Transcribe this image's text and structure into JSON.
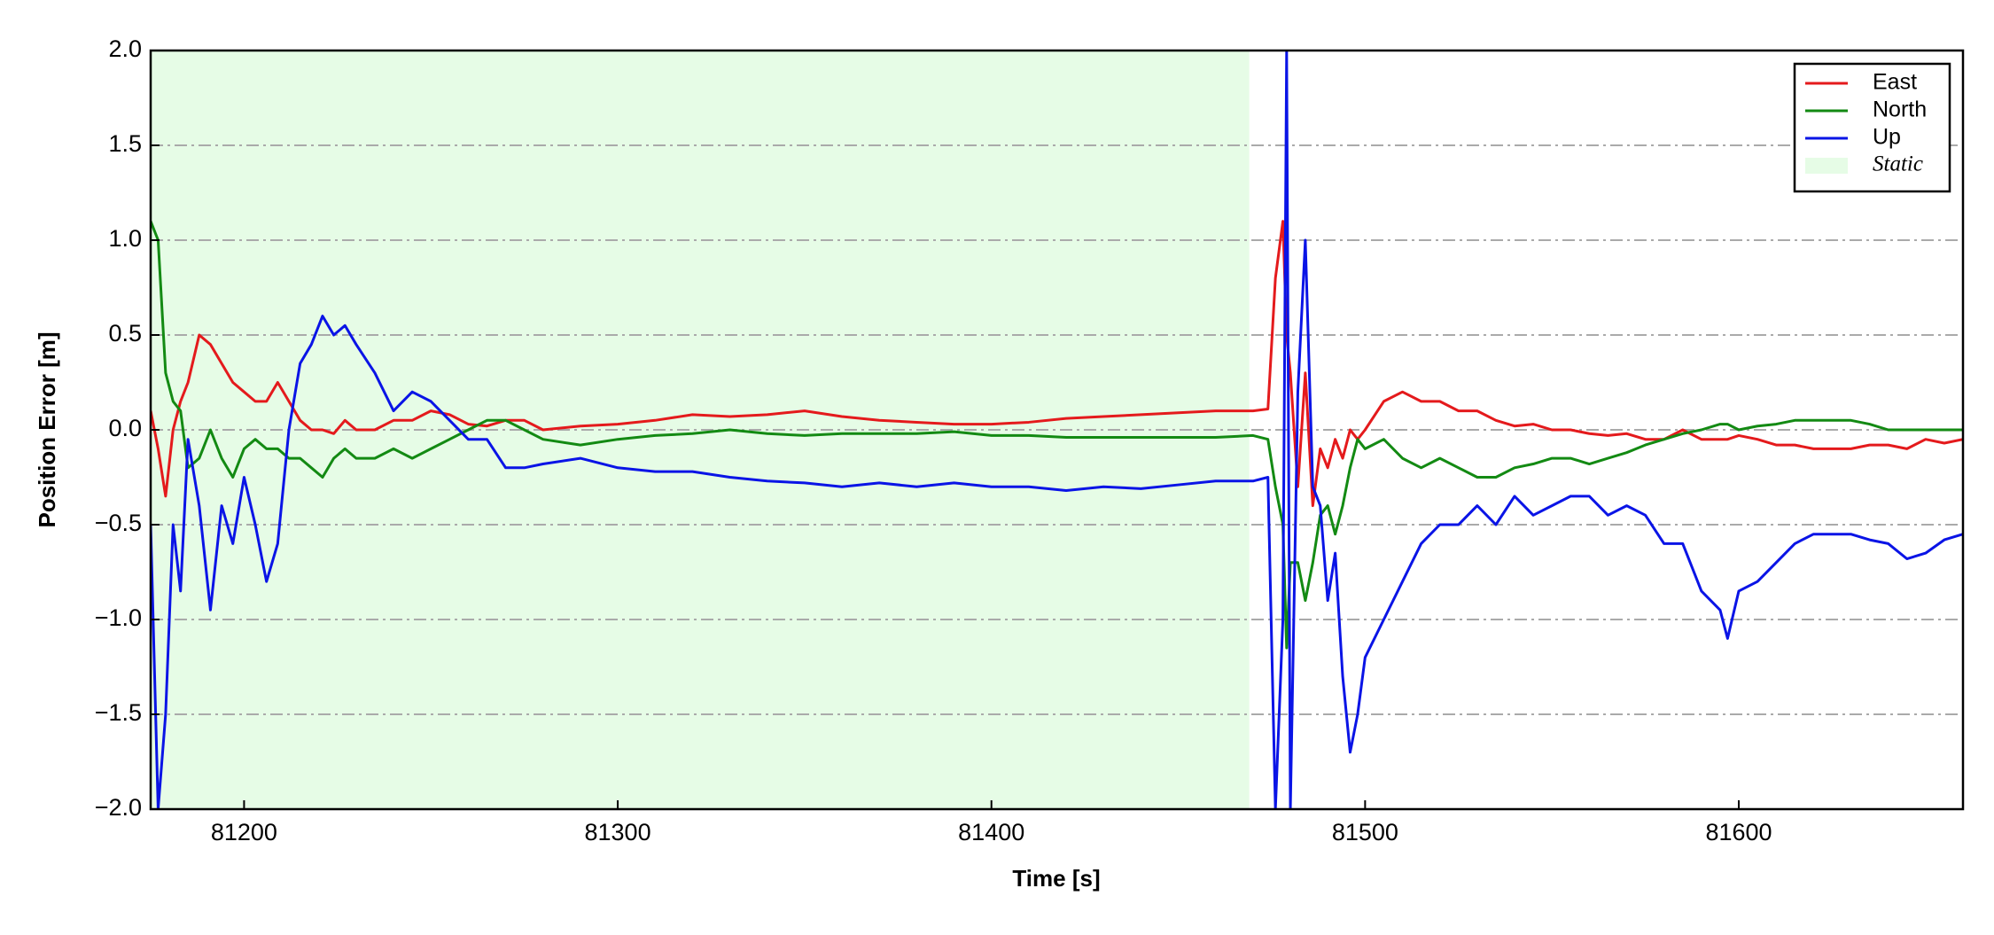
{
  "chart_data": {
    "type": "line",
    "xlabel": "Time [s]",
    "ylabel": "Position Error [m]",
    "xlim": [
      81175,
      81660
    ],
    "ylim": [
      -2.0,
      2.0
    ],
    "xticks": [
      81200,
      81300,
      81400,
      81500,
      81600
    ],
    "yticks": [
      {
        "value": -2.0,
        "label": "−2.0"
      },
      {
        "value": -1.5,
        "label": "−1.5"
      },
      {
        "value": -1.0,
        "label": "−1.0"
      },
      {
        "value": -0.5,
        "label": "−0.5"
      },
      {
        "value": 0.0,
        "label": "0.0"
      },
      {
        "value": 0.5,
        "label": "0.5"
      },
      {
        "value": 1.0,
        "label": "1.0"
      },
      {
        "value": 1.5,
        "label": "1.5"
      },
      {
        "value": 2.0,
        "label": "2.0"
      }
    ],
    "grid": true,
    "legend": "upper right",
    "shade": {
      "label": "Static",
      "from": 81175,
      "to": 81469,
      "color": "#e6fce6"
    },
    "x": [
      81175,
      81177,
      81179,
      81181,
      81183,
      81185,
      81188,
      81191,
      81194,
      81197,
      81200,
      81203,
      81206,
      81209,
      81212,
      81215,
      81218,
      81221,
      81224,
      81227,
      81230,
      81235,
      81240,
      81245,
      81250,
      81255,
      81260,
      81265,
      81270,
      81275,
      81280,
      81290,
      81300,
      81310,
      81320,
      81330,
      81340,
      81350,
      81360,
      81370,
      81380,
      81390,
      81400,
      81410,
      81420,
      81430,
      81440,
      81450,
      81460,
      81470,
      81474,
      81476,
      81478,
      81479,
      81480,
      81482,
      81484,
      81486,
      81488,
      81490,
      81492,
      81494,
      81496,
      81498,
      81500,
      81505,
      81510,
      81515,
      81520,
      81525,
      81530,
      81535,
      81540,
      81545,
      81550,
      81555,
      81560,
      81565,
      81570,
      81575,
      81580,
      81585,
      81590,
      81595,
      81597,
      81600,
      81605,
      81610,
      81615,
      81620,
      81625,
      81630,
      81635,
      81640,
      81645,
      81650,
      81655,
      81660
    ],
    "series": [
      {
        "name": "East",
        "color": "#e41a1c",
        "values": [
          0.1,
          -0.1,
          -0.35,
          0.0,
          0.15,
          0.25,
          0.5,
          0.45,
          0.35,
          0.25,
          0.2,
          0.15,
          0.15,
          0.25,
          0.15,
          0.05,
          0.0,
          0.0,
          -0.02,
          0.05,
          0.0,
          0.0,
          0.05,
          0.05,
          0.1,
          0.08,
          0.03,
          0.02,
          0.05,
          0.05,
          0.0,
          0.02,
          0.03,
          0.05,
          0.08,
          0.07,
          0.08,
          0.1,
          0.07,
          0.05,
          0.04,
          0.03,
          0.03,
          0.04,
          0.06,
          0.07,
          0.08,
          0.09,
          0.1,
          0.1,
          0.11,
          0.8,
          1.1,
          0.5,
          0.3,
          -0.3,
          0.3,
          -0.4,
          -0.1,
          -0.2,
          -0.05,
          -0.15,
          0.0,
          -0.05,
          0.0,
          0.15,
          0.2,
          0.15,
          0.15,
          0.1,
          0.1,
          0.05,
          0.02,
          0.03,
          0.0,
          0.0,
          -0.02,
          -0.03,
          -0.02,
          -0.05,
          -0.05,
          0.0,
          -0.05,
          -0.05,
          -0.05,
          -0.03,
          -0.05,
          -0.08,
          -0.08,
          -0.1,
          -0.1,
          -0.1,
          -0.08,
          -0.08,
          -0.1,
          -0.05,
          -0.07,
          -0.05
        ]
      },
      {
        "name": "North",
        "color": "#138a13",
        "values": [
          1.1,
          1.0,
          0.3,
          0.15,
          0.1,
          -0.2,
          -0.15,
          0.0,
          -0.15,
          -0.25,
          -0.1,
          -0.05,
          -0.1,
          -0.1,
          -0.15,
          -0.15,
          -0.2,
          -0.25,
          -0.15,
          -0.1,
          -0.15,
          -0.15,
          -0.1,
          -0.15,
          -0.1,
          -0.05,
          0.0,
          0.05,
          0.05,
          0.0,
          -0.05,
          -0.08,
          -0.05,
          -0.03,
          -0.02,
          0.0,
          -0.02,
          -0.03,
          -0.02,
          -0.02,
          -0.02,
          -0.01,
          -0.03,
          -0.03,
          -0.04,
          -0.04,
          -0.04,
          -0.04,
          -0.04,
          -0.03,
          -0.05,
          -0.3,
          -0.5,
          -1.15,
          -0.7,
          -0.7,
          -0.9,
          -0.7,
          -0.45,
          -0.4,
          -0.55,
          -0.4,
          -0.2,
          -0.05,
          -0.1,
          -0.05,
          -0.15,
          -0.2,
          -0.15,
          -0.2,
          -0.25,
          -0.25,
          -0.2,
          -0.18,
          -0.15,
          -0.15,
          -0.18,
          -0.15,
          -0.12,
          -0.08,
          -0.05,
          -0.02,
          0.0,
          0.03,
          0.03,
          0.0,
          0.02,
          0.03,
          0.05,
          0.05,
          0.05,
          0.05,
          0.03,
          0.0,
          0.0,
          0.0,
          0.0,
          0.0
        ]
      },
      {
        "name": "Up",
        "color": "#0a14e6",
        "values": [
          -0.5,
          -2.0,
          -1.5,
          -0.5,
          -0.85,
          -0.05,
          -0.4,
          -0.95,
          -0.4,
          -0.6,
          -0.25,
          -0.5,
          -0.8,
          -0.6,
          0.0,
          0.35,
          0.45,
          0.6,
          0.5,
          0.55,
          0.45,
          0.3,
          0.1,
          0.2,
          0.15,
          0.05,
          -0.05,
          -0.05,
          -0.2,
          -0.2,
          -0.18,
          -0.15,
          -0.2,
          -0.22,
          -0.22,
          -0.25,
          -0.27,
          -0.28,
          -0.3,
          -0.28,
          -0.3,
          -0.28,
          -0.3,
          -0.3,
          -0.32,
          -0.3,
          -0.31,
          -0.29,
          -0.27,
          -0.27,
          -0.25,
          -2.0,
          -1.0,
          2.0,
          -2.0,
          0.2,
          1.0,
          -0.3,
          -0.4,
          -0.9,
          -0.65,
          -1.3,
          -1.7,
          -1.5,
          -1.2,
          -1.0,
          -0.8,
          -0.6,
          -0.5,
          -0.5,
          -0.4,
          -0.5,
          -0.35,
          -0.45,
          -0.4,
          -0.35,
          -0.35,
          -0.45,
          -0.4,
          -0.45,
          -0.6,
          -0.6,
          -0.85,
          -0.95,
          -1.1,
          -0.85,
          -0.8,
          -0.7,
          -0.6,
          -0.55,
          -0.55,
          -0.55,
          -0.58,
          -0.6,
          -0.68,
          -0.65,
          -0.58,
          -0.55
        ]
      }
    ]
  }
}
